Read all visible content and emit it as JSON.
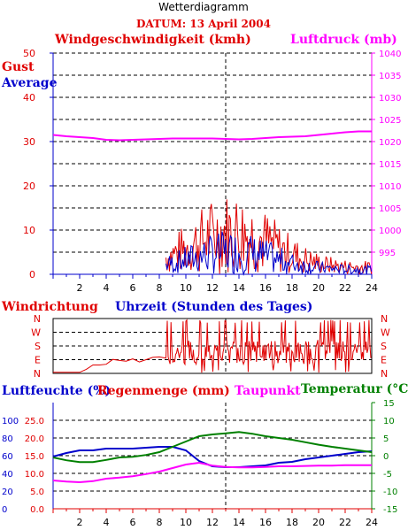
{
  "header": {
    "title": "Wetterdiagramm",
    "date_label": "DATUM: 13 April 2004"
  },
  "colors": {
    "red": "#e00000",
    "blue": "#0000cc",
    "magenta": "#ff00ff",
    "green": "#008000",
    "grid": "#000000"
  },
  "chart_data": [
    {
      "type": "line",
      "left_axis_title": "Windgeschwindigkeit (kmh)",
      "right_axis_title": "Luftdruck (mb)",
      "left_legend": [
        "Gust",
        "Average"
      ],
      "xlim": [
        0,
        24
      ],
      "ylim_left": [
        0,
        50
      ],
      "ylim_right": [
        990,
        1040
      ],
      "left_ticks": [
        0,
        10,
        20,
        30,
        40,
        50
      ],
      "right_ticks": [
        995,
        1000,
        1005,
        1010,
        1015,
        1020,
        1025,
        1030,
        1035,
        1040
      ],
      "x_ticks": [
        2,
        4,
        6,
        8,
        10,
        12,
        14,
        16,
        18,
        20,
        22,
        24
      ],
      "x_axis_title": "Uhrzeit (Stunden des Tages)",
      "series": [
        {
          "name": "Luftdruck",
          "axis": "right",
          "x": [
            0,
            1,
            2,
            3,
            4,
            5,
            6,
            7,
            8,
            9,
            10,
            11,
            12,
            13,
            14,
            15,
            16,
            17,
            18,
            19,
            20,
            21,
            22,
            23,
            24
          ],
          "values": [
            1021.5,
            1021.2,
            1021,
            1020.8,
            1020.4,
            1020.3,
            1020.4,
            1020.5,
            1020.6,
            1020.7,
            1020.7,
            1020.7,
            1020.7,
            1020.6,
            1020.5,
            1020.6,
            1020.8,
            1021,
            1021.1,
            1021.2,
            1021.5,
            1021.8,
            1022.1,
            1022.3,
            1022.3
          ]
        }
      ],
      "gust_peak_kmh": 16,
      "gust_active_from_hour": 8.5
    },
    {
      "type": "line",
      "title": "Windrichtung",
      "left_ticks": [
        "N",
        "W",
        "S",
        "E",
        "N"
      ],
      "right_ticks": [
        "N",
        "W",
        "S",
        "E",
        "N"
      ],
      "xlim": [
        0,
        24
      ],
      "series": [
        {
          "name": "Windrichtung",
          "x": [
            0,
            1,
            2,
            2.5,
            3,
            3.5,
            4,
            4.5,
            5,
            5.5,
            6,
            6.5,
            7,
            7.5,
            8,
            8.5
          ],
          "values": [
            7,
            7,
            7,
            27,
            55,
            55,
            60,
            92,
            85,
            80,
            95,
            75,
            90,
            105,
            108,
            100
          ]
        }
      ]
    },
    {
      "type": "line",
      "left_axis_title": "Luftfeuchte (%)",
      "left_axis_title2": "Regenmenge (mm)",
      "middle_title": "Taupunkt",
      "right_axis_title": "Temperatur (°C)",
      "xlim": [
        0,
        24
      ],
      "left_ticks_humidity": [
        0,
        20,
        40,
        60,
        80,
        100
      ],
      "left_ticks_rain": [
        "0.0",
        "5.0",
        "10.0",
        "15.0",
        "20.0",
        "25.0"
      ],
      "right_ticks": [
        15,
        10,
        5,
        0,
        -5,
        -10,
        -15
      ],
      "x_ticks": [
        2,
        4,
        6,
        8,
        10,
        12,
        14,
        16,
        18,
        20,
        22,
        24
      ],
      "series": [
        {
          "name": "Luftfeuchte",
          "color": "blue",
          "x": [
            0,
            1,
            2,
            3,
            4,
            5,
            6,
            7,
            8,
            9,
            10,
            11,
            12,
            13,
            14,
            15,
            16,
            17,
            18,
            19,
            20,
            21,
            22,
            23,
            24
          ],
          "values": [
            59,
            63,
            66,
            66,
            68,
            68,
            68,
            69,
            70,
            70,
            66,
            54,
            48,
            47,
            47,
            48,
            49,
            52,
            53,
            56,
            58,
            60,
            62,
            64,
            65
          ]
        },
        {
          "name": "Temperatur",
          "color": "green",
          "x": [
            0,
            1,
            2,
            3,
            4,
            5,
            6,
            7,
            8,
            9,
            10,
            11,
            12,
            13,
            14,
            15,
            16,
            17,
            18,
            19,
            20,
            21,
            22,
            23,
            24
          ],
          "values": [
            -0.5,
            -1.3,
            -1.8,
            -1.8,
            -1.2,
            -0.5,
            -0.3,
            0.2,
            1,
            2.5,
            4,
            5.5,
            6,
            6.3,
            6.7,
            6.2,
            5.5,
            5,
            4.5,
            3.8,
            3.1,
            2.5,
            2,
            1.5,
            1
          ]
        },
        {
          "name": "Taupunkt",
          "color": "magenta",
          "x": [
            0,
            1,
            2,
            3,
            4,
            5,
            6,
            7,
            8,
            9,
            10,
            11,
            12,
            13,
            14,
            15,
            16,
            17,
            18,
            19,
            20,
            21,
            22,
            23,
            24
          ],
          "values": [
            -7,
            -7.3,
            -7.5,
            -7.2,
            -6.5,
            -6.2,
            -5.8,
            -5.2,
            -4.5,
            -3.5,
            -2.5,
            -2,
            -2.8,
            -3.2,
            -3.3,
            -3.3,
            -3.2,
            -3,
            -3,
            -2.9,
            -2.8,
            -2.8,
            -2.7,
            -2.7,
            -2.7
          ]
        }
      ]
    }
  ]
}
